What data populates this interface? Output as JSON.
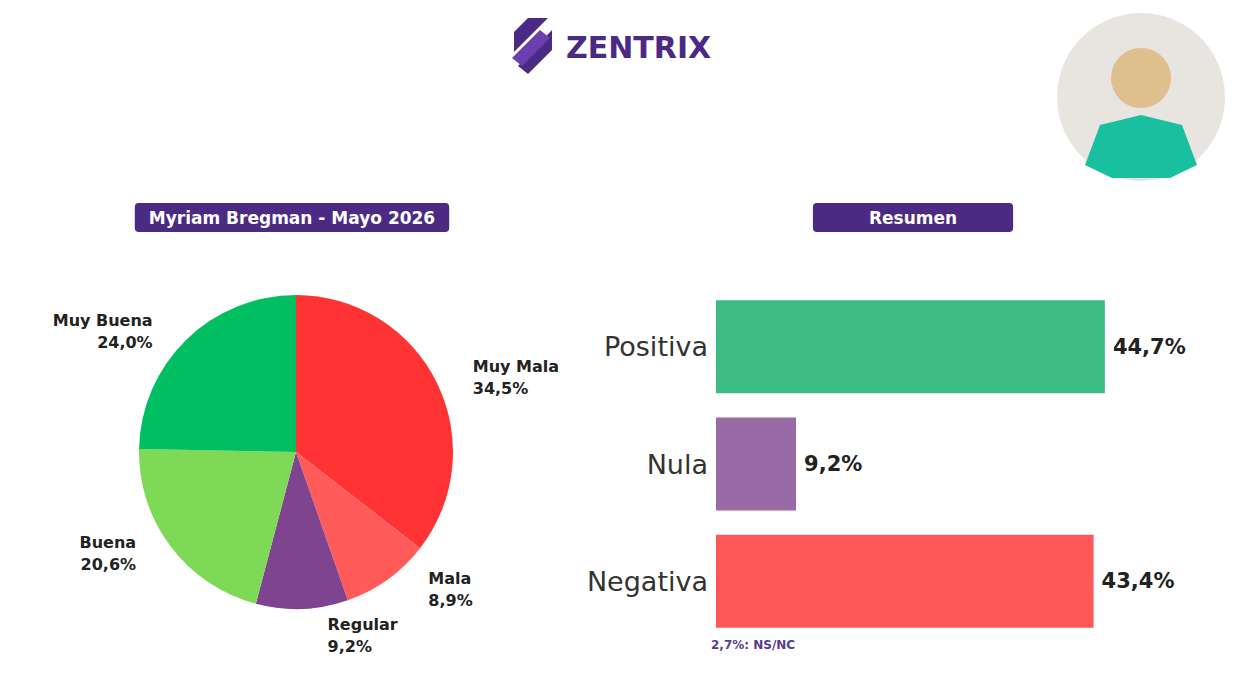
{
  "header": {
    "brand": "ZENTRIX"
  },
  "chart_data": [
    {
      "type": "pie",
      "title": "Myriam Bregman - Mayo 2026",
      "categories": [
        "Muy Mala",
        "Mala",
        "Regular",
        "Buena",
        "Muy Buena"
      ],
      "values": [
        34.5,
        8.9,
        9.2,
        20.6,
        24.0
      ],
      "value_labels": [
        "34,5%",
        "8,9%",
        "9,2%",
        "20,6%",
        "24,0%"
      ],
      "colors": [
        "#ff3333",
        "#ff5b5b",
        "#7e4490",
        "#7ed957",
        "#00bf63"
      ],
      "data_labels": true
    },
    {
      "type": "bar",
      "title": "Resumen",
      "orientation": "horizontal",
      "categories": [
        "Positiva",
        "Nula",
        "Negativa"
      ],
      "values": [
        44.7,
        9.2,
        43.4
      ],
      "value_labels": [
        "44,7%",
        "9,2%",
        "43,4%"
      ],
      "colors": [
        "#3dbd83",
        "#9a6aa6",
        "#ff5757"
      ],
      "xlim": [
        0,
        50
      ],
      "xticks": [
        0,
        50
      ],
      "grid": false,
      "tick_labels": "y",
      "data_labels": true,
      "annotation": "2,7%: NS/NC"
    }
  ]
}
